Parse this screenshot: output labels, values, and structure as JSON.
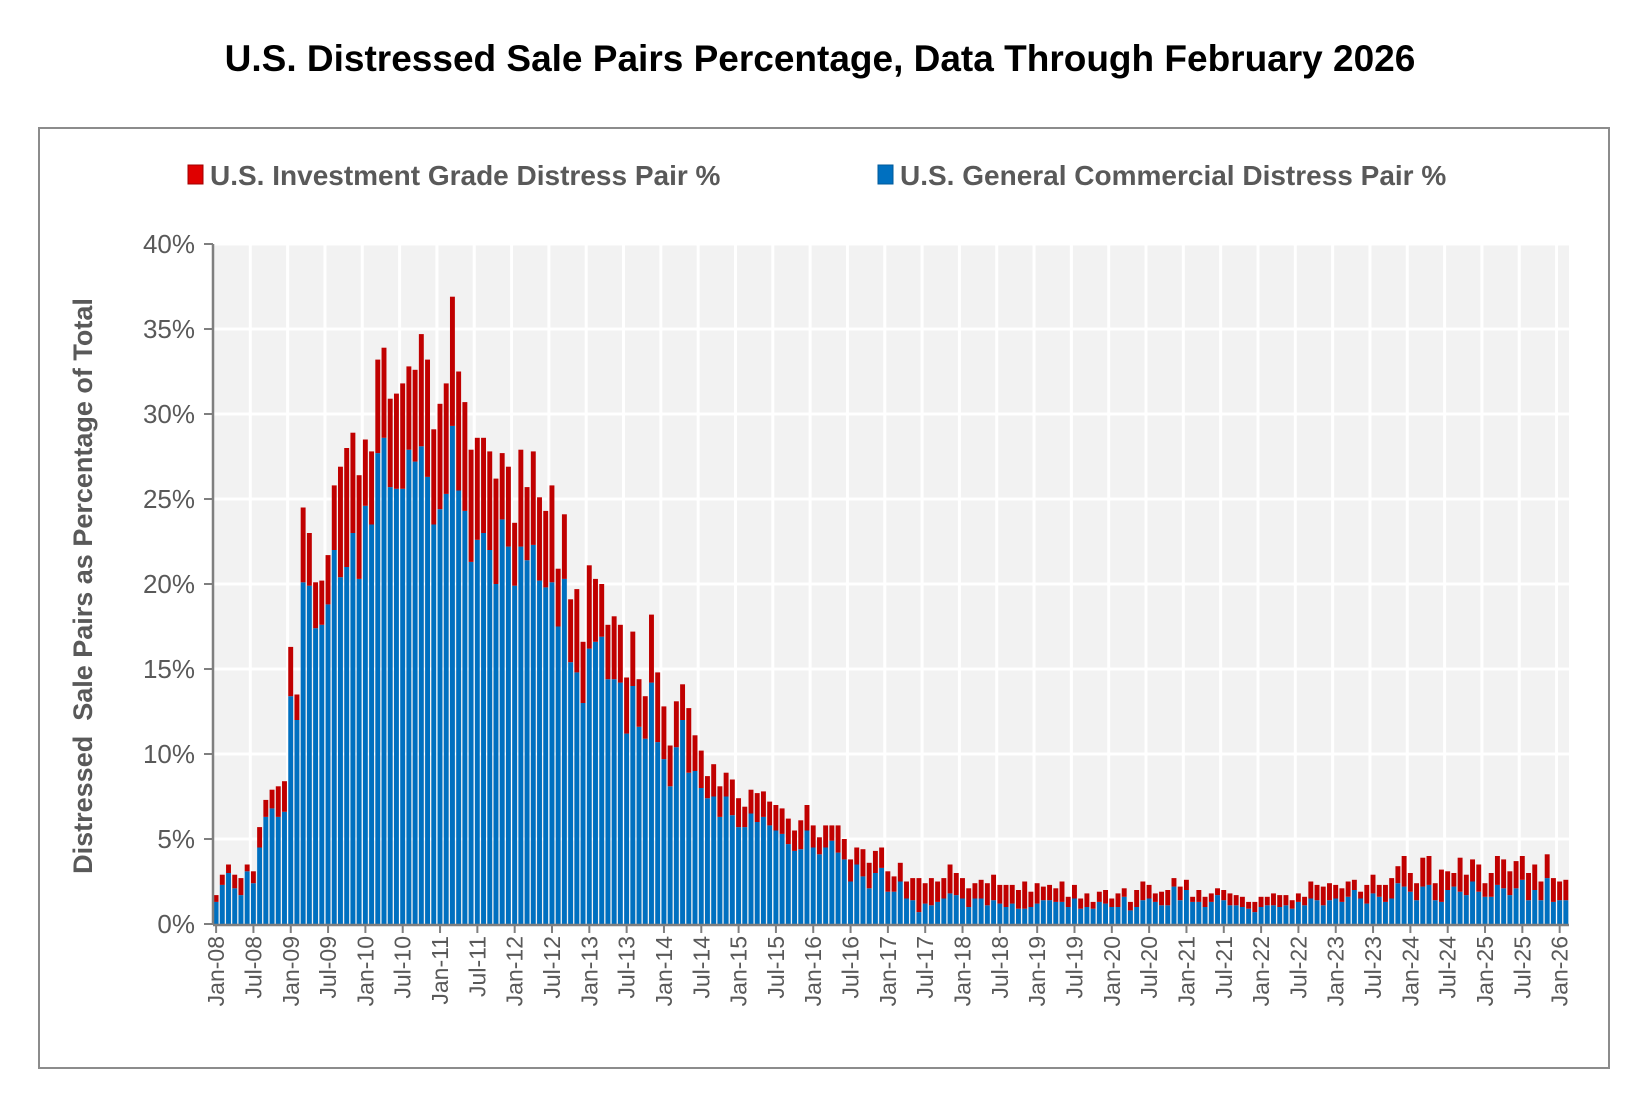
{
  "chart_data": {
    "type": "bar",
    "stacked": true,
    "title": "U.S. Distressed Sale Pairs Percentage, Data Through February 2026",
    "xlabel": "",
    "ylabel": "Distressed  Sale Pairs as Percentage of Total",
    "x_range": [
      "Jan-08",
      "Feb-26"
    ],
    "x_frequency": "monthly",
    "x_tick_labels": [
      "Jan-08",
      "Jul-08",
      "Jan-09",
      "Jul-09",
      "Jan-10",
      "Jul-10",
      "Jan-11",
      "Jul-11",
      "Jan-12",
      "Jul-12",
      "Jan-13",
      "Jul-13",
      "Jan-14",
      "Jul-14",
      "Jan-15",
      "Jul-15",
      "Jan-16",
      "Jul-16",
      "Jan-17",
      "Jul-17",
      "Jan-18",
      "Jul-18",
      "Jan-19",
      "Jul-19",
      "Jan-20",
      "Jul-20",
      "Jan-21",
      "Jul-21",
      "Jan-22",
      "Jul-22",
      "Jan-23",
      "Jul-23",
      "Jan-24",
      "Jul-24",
      "Jan-25",
      "Jul-25",
      "Jan-26"
    ],
    "ylim": [
      0,
      40
    ],
    "y_tick_labels": [
      "0%",
      "5%",
      "10%",
      "15%",
      "20%",
      "25%",
      "30%",
      "35%",
      "40%"
    ],
    "y_unit": "%",
    "grid": true,
    "legend_position": "top",
    "plot_background": "#f2f2f2",
    "series": [
      {
        "name": "U.S. General Commercial Distress Pair %",
        "color": "#0070c0",
        "stack_order": 1,
        "values": [
          1.3,
          2.3,
          3.0,
          2.1,
          1.7,
          3.1,
          2.4,
          4.5,
          6.3,
          6.8,
          6.3,
          6.6,
          13.4,
          12.0,
          20.1,
          19.9,
          17.4,
          17.6,
          18.8,
          22.0,
          20.4,
          21.0,
          23.0,
          20.3,
          24.6,
          23.5,
          27.7,
          28.6,
          25.7,
          25.6,
          25.6,
          27.9,
          27.2,
          28.1,
          26.3,
          23.5,
          24.4,
          25.3,
          29.3,
          25.5,
          24.3,
          21.3,
          22.6,
          23.0,
          22.0,
          20.0,
          23.8,
          22.2,
          19.9,
          22.2,
          21.4,
          22.3,
          20.2,
          19.8,
          20.1,
          17.5,
          20.3,
          15.4,
          14.8,
          13.0,
          16.2,
          16.6,
          16.9,
          14.4,
          14.4,
          14.2,
          11.2,
          14.0,
          11.6,
          10.9,
          14.2,
          10.7,
          9.7,
          8.1,
          10.4,
          12.0,
          8.9,
          9.0,
          8.0,
          7.4,
          7.5,
          6.3,
          7.5,
          6.4,
          5.7,
          5.7,
          6.5,
          6.0,
          6.3,
          5.8,
          5.5,
          5.3,
          4.7,
          4.3,
          4.4,
          5.5,
          4.5,
          4.1,
          4.5,
          4.9,
          4.2,
          3.8,
          2.5,
          3.5,
          2.8,
          2.1,
          3.0,
          3.3,
          1.9,
          1.9,
          2.5,
          1.5,
          1.4,
          0.7,
          1.2,
          1.1,
          1.3,
          1.5,
          1.8,
          1.7,
          1.5,
          1.0,
          1.5,
          1.5,
          1.1,
          1.4,
          1.2,
          1.0,
          1.2,
          0.9,
          0.9,
          1.0,
          1.2,
          1.4,
          1.4,
          1.3,
          1.3,
          1.0,
          1.5,
          0.9,
          1.0,
          0.9,
          1.3,
          1.2,
          1.0,
          1.0,
          1.6,
          0.8,
          1.0,
          1.4,
          1.5,
          1.3,
          1.1,
          1.1,
          2.2,
          1.4,
          2.0,
          1.3,
          1.3,
          1.0,
          1.3,
          1.7,
          1.4,
          1.1,
          1.1,
          1.0,
          0.9,
          0.7,
          1.0,
          1.1,
          1.1,
          1.0,
          1.1,
          0.9,
          1.3,
          1.1,
          1.5,
          1.4,
          1.1,
          1.4,
          1.5,
          1.3,
          1.6,
          2.0,
          1.5,
          1.2,
          1.8,
          1.6,
          1.3,
          1.5,
          2.4,
          2.2,
          1.9,
          1.4,
          2.2,
          2.3,
          1.4,
          1.3,
          2.0,
          2.2,
          1.9,
          1.7,
          2.5,
          1.9,
          1.6,
          1.6,
          2.3,
          2.1,
          1.7,
          2.1,
          2.6,
          1.4,
          2.0,
          1.4,
          2.7,
          1.3,
          1.4,
          1.4
        ]
      },
      {
        "name": "U.S. Investment Grade Distress Pair %",
        "color": "#c00000",
        "stack_order": 2,
        "values": [
          0.4,
          0.6,
          0.5,
          0.8,
          1.0,
          0.4,
          0.7,
          1.2,
          1.0,
          1.1,
          1.8,
          1.8,
          2.9,
          1.5,
          4.4,
          3.1,
          2.7,
          2.6,
          2.9,
          3.8,
          6.5,
          7.0,
          5.9,
          6.1,
          3.9,
          4.3,
          5.5,
          5.3,
          5.2,
          5.6,
          6.2,
          4.9,
          5.4,
          6.6,
          6.9,
          5.6,
          6.2,
          6.5,
          7.6,
          7.0,
          6.4,
          6.6,
          6.0,
          5.6,
          5.8,
          6.2,
          3.9,
          4.7,
          3.7,
          5.7,
          4.3,
          5.5,
          4.9,
          4.5,
          5.7,
          3.4,
          3.8,
          3.7,
          4.9,
          3.6,
          4.9,
          3.7,
          3.1,
          3.2,
          3.7,
          3.4,
          3.3,
          3.2,
          2.8,
          2.5,
          4.0,
          4.1,
          3.1,
          2.4,
          2.7,
          2.1,
          3.8,
          2.1,
          2.2,
          1.3,
          1.9,
          1.8,
          1.4,
          2.1,
          1.7,
          1.2,
          1.4,
          1.7,
          1.5,
          1.4,
          1.5,
          1.5,
          1.5,
          1.2,
          1.7,
          1.5,
          1.3,
          1.0,
          1.3,
          0.9,
          1.6,
          1.2,
          1.3,
          1.0,
          1.6,
          1.5,
          1.3,
          1.2,
          1.2,
          0.9,
          1.1,
          1.0,
          1.3,
          2.0,
          1.2,
          1.6,
          1.2,
          1.2,
          1.7,
          1.3,
          1.2,
          1.1,
          0.9,
          1.1,
          1.3,
          1.5,
          1.1,
          1.3,
          1.1,
          1.1,
          1.6,
          0.9,
          1.2,
          0.8,
          0.9,
          0.8,
          1.2,
          0.6,
          0.8,
          0.6,
          0.8,
          0.4,
          0.6,
          0.8,
          0.5,
          0.8,
          0.5,
          0.5,
          1.0,
          1.1,
          0.8,
          0.5,
          0.8,
          0.9,
          0.5,
          0.8,
          0.6,
          0.3,
          0.7,
          0.6,
          0.5,
          0.4,
          0.6,
          0.7,
          0.6,
          0.6,
          0.4,
          0.6,
          0.6,
          0.5,
          0.7,
          0.7,
          0.6,
          0.5,
          0.5,
          0.5,
          1.0,
          0.9,
          1.1,
          1.0,
          0.8,
          0.8,
          0.9,
          0.6,
          0.4,
          1.1,
          1.1,
          0.7,
          1.0,
          1.2,
          1.0,
          1.8,
          1.1,
          1.0,
          1.7,
          1.7,
          1.0,
          1.9,
          1.1,
          0.8,
          2.0,
          1.2,
          1.3,
          1.6,
          0.8,
          1.4,
          1.7,
          1.7,
          1.4,
          1.6,
          1.4,
          1.6,
          1.5,
          1.1,
          1.4,
          1.4,
          1.1,
          1.2
        ]
      }
    ],
    "legend": [
      {
        "label": "U.S. Investment Grade Distress Pair %",
        "color": "#c00000"
      },
      {
        "label": "U.S. General Commercial Distress Pair %",
        "color": "#0070c0"
      }
    ]
  }
}
